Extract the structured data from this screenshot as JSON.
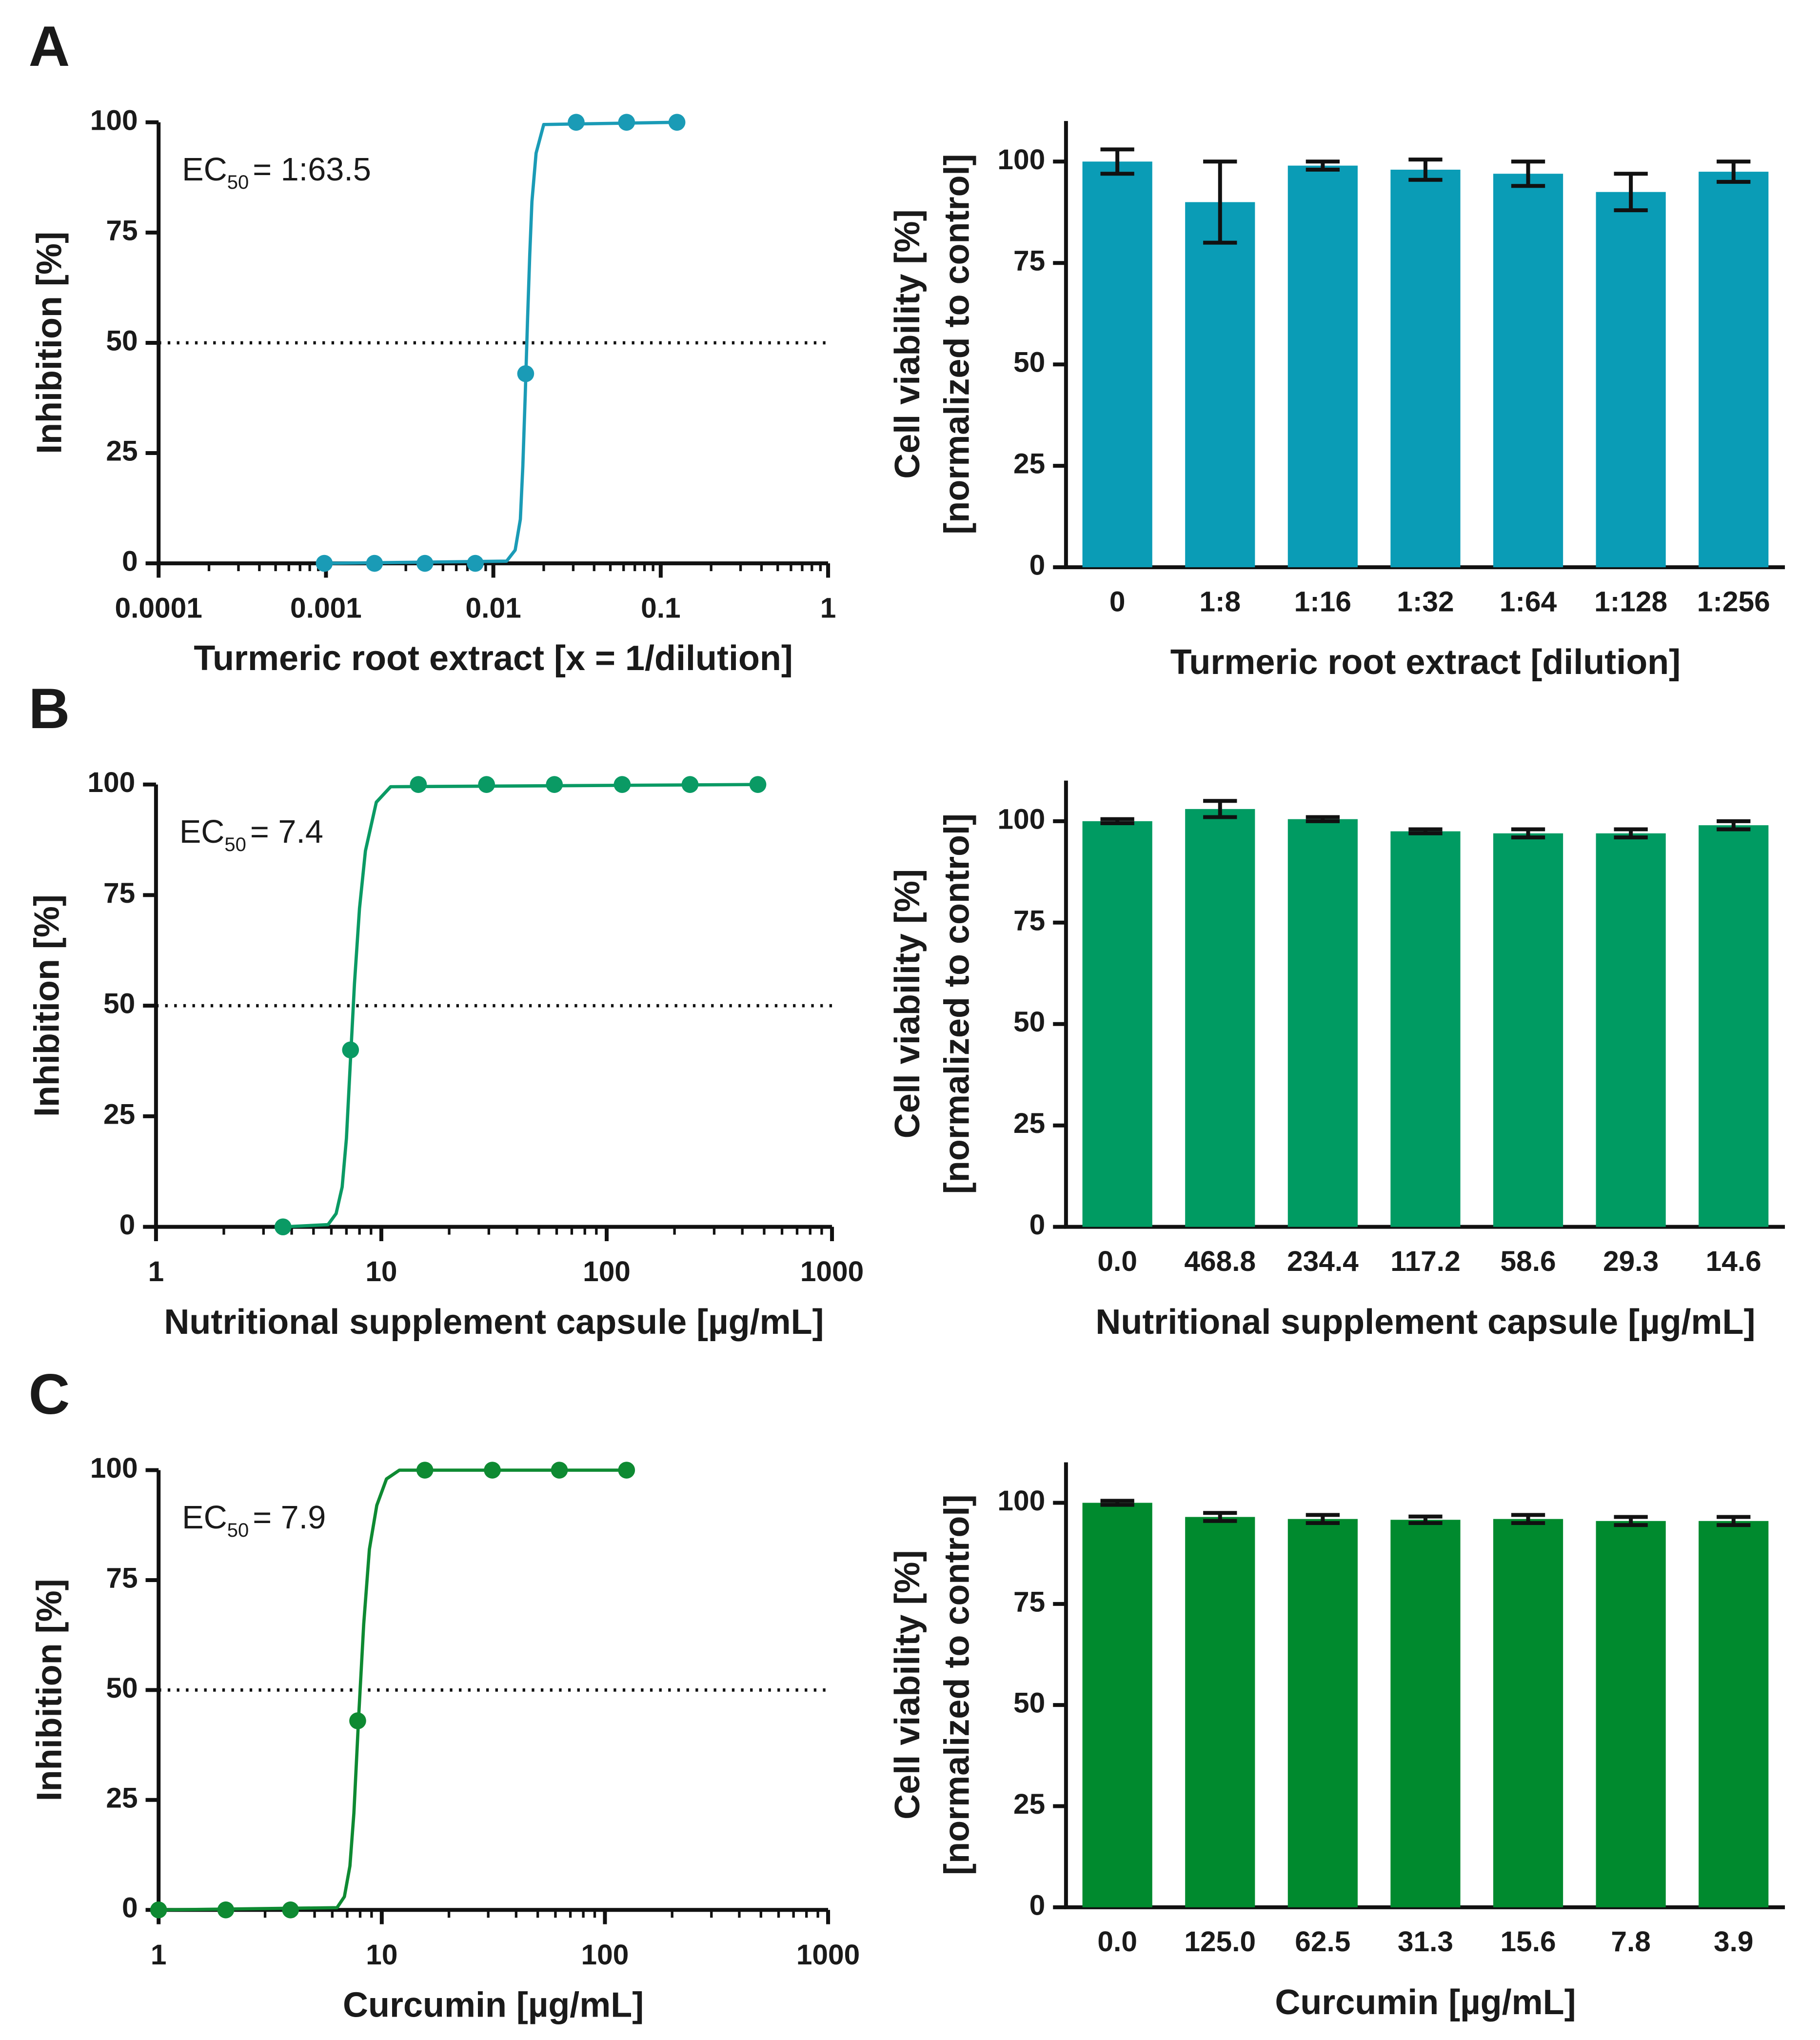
{
  "chart_data": [
    {
      "type": "scatter",
      "panel": "A",
      "xlabel": "Turmeric root extract [x = 1/dilution]",
      "ylabel": "Inhibition [%]",
      "annotation": {
        "text": "EC",
        "subscript": "50",
        "after": "= 1:63.5"
      },
      "x": [
        0.000977,
        0.00195,
        0.0039,
        0.0078,
        0.0156,
        0.03125,
        0.0625,
        0.125
      ],
      "values": [
        0,
        0,
        0,
        0,
        43,
        100,
        100,
        100
      ],
      "color": "#1a9bb6",
      "fit": {
        "x": [
          0.000977,
          0.012,
          0.0135,
          0.0145,
          0.015,
          0.0155,
          0.016,
          0.0165,
          0.017,
          0.018,
          0.02,
          0.125
        ],
        "values": [
          0,
          0.5,
          3,
          10,
          22,
          38,
          55,
          70,
          82,
          93,
          99.5,
          100
        ]
      },
      "reference_line": 50,
      "log_x": true,
      "xlim": [
        0.0001,
        1
      ],
      "xticks": [
        0.0001,
        0.001,
        0.01,
        0.1,
        1
      ],
      "ylim": [
        0,
        100
      ],
      "yticks": [
        0,
        25,
        50,
        75,
        100
      ]
    },
    {
      "type": "bar",
      "xlabel": "Turmeric root extract [dilution]",
      "ylabel": [
        "Cell viability [%]",
        "[normalized to control]"
      ],
      "categories": [
        "0",
        "1:8",
        "1:16",
        "1:32",
        "1:64",
        "1:128",
        "1:256"
      ],
      "values": [
        100,
        90,
        99,
        98,
        97,
        92.5,
        97.5
      ],
      "errors": [
        3,
        10,
        1,
        2.5,
        3,
        4.5,
        2.5
      ],
      "color": "#0a9cb6",
      "ylim": [
        0,
        110
      ],
      "yticks": [
        0,
        25,
        50,
        75,
        100
      ]
    },
    {
      "type": "scatter",
      "panel": "B",
      "xlabel": "Nutritional supplement capsule [µg/mL]",
      "ylabel": "Inhibition [%]",
      "annotation": {
        "text": "EC",
        "subscript": "50",
        "after": "= 7.4"
      },
      "x": [
        3.66,
        7.3,
        14.6,
        29.3,
        58.6,
        117.2,
        234.4,
        468.8
      ],
      "values": [
        0,
        40,
        100,
        100,
        100,
        100,
        100,
        100
      ],
      "color": "#0a9a64",
      "fit": {
        "x": [
          3.66,
          5.8,
          6.3,
          6.7,
          7.0,
          7.3,
          7.6,
          8.0,
          8.5,
          9.5,
          11,
          468.8
        ],
        "values": [
          0,
          0.5,
          3,
          9,
          20,
          38,
          55,
          72,
          85,
          96,
          99.5,
          100
        ]
      },
      "reference_line": 50,
      "log_x": true,
      "xlim": [
        1,
        1000
      ],
      "xticks": [
        1,
        10,
        100,
        1000
      ],
      "ylim": [
        0,
        100
      ],
      "yticks": [
        0,
        25,
        50,
        75,
        100
      ]
    },
    {
      "type": "bar",
      "xlabel": "Nutritional supplement capsule [µg/mL]",
      "ylabel": [
        "Cell viability [%]",
        "[normalized to control]"
      ],
      "categories": [
        "0.0",
        "468.8",
        "234.4",
        "117.2",
        "58.6",
        "29.3",
        "14.6"
      ],
      "values": [
        100,
        103,
        100.5,
        97.5,
        97,
        97,
        99
      ],
      "errors": [
        0.5,
        2,
        0.5,
        0.5,
        1,
        1,
        1
      ],
      "color": "#009b62",
      "ylim": [
        0,
        110
      ],
      "yticks": [
        0,
        25,
        50,
        75,
        100
      ]
    },
    {
      "type": "scatter",
      "panel": "C",
      "xlabel": "Curcumin [µg/mL]",
      "ylabel": "Inhibition [%]",
      "annotation": {
        "text": "EC",
        "subscript": "50",
        "after": "= 7.9"
      },
      "x": [
        1,
        2,
        3.9,
        7.8,
        15.6,
        31.3,
        62.5,
        125
      ],
      "values": [
        0,
        0,
        0,
        43,
        100,
        100,
        100,
        100
      ],
      "color": "#0e8a32",
      "fit": {
        "x": [
          1,
          6.3,
          6.8,
          7.2,
          7.5,
          7.9,
          8.3,
          8.8,
          9.5,
          10.5,
          12,
          125
        ],
        "values": [
          0,
          0.5,
          3,
          10,
          22,
          45,
          65,
          82,
          92,
          98,
          100,
          100
        ]
      },
      "reference_line": 50,
      "log_x": true,
      "xlim": [
        1,
        1000
      ],
      "xticks": [
        1,
        10,
        100,
        1000
      ],
      "ylim": [
        0,
        100
      ],
      "yticks": [
        0,
        25,
        50,
        75,
        100
      ]
    },
    {
      "type": "bar",
      "xlabel": "Curcumin [µg/mL]",
      "ylabel": [
        "Cell viability [%]",
        "[normalized to control]"
      ],
      "categories": [
        "0.0",
        "125.0",
        "62.5",
        "31.3",
        "15.6",
        "7.8",
        "3.9"
      ],
      "values": [
        100,
        96.5,
        96,
        95.8,
        96,
        95.5,
        95.5
      ],
      "errors": [
        0.5,
        1,
        1,
        0.8,
        1,
        1,
        1
      ],
      "color": "#008a2e",
      "ylim": [
        0,
        110
      ],
      "yticks": [
        0,
        25,
        50,
        75,
        100
      ]
    }
  ]
}
